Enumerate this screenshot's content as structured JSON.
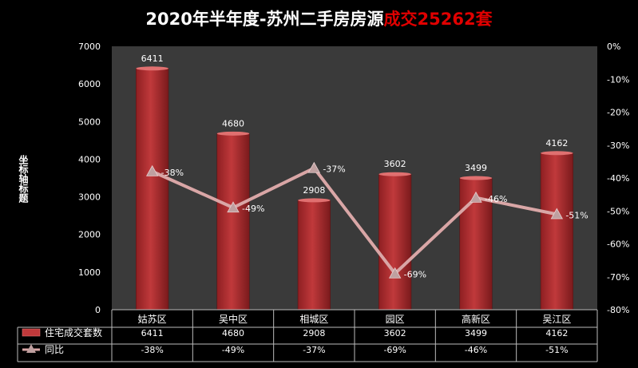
{
  "title": {
    "main": "2020年半年度-苏州二手房房源",
    "highlight": "成交25262套"
  },
  "chart_data": {
    "type": "bar",
    "categories": [
      "姑苏区",
      "吴中区",
      "相城区",
      "园区",
      "高新区",
      "吴江区"
    ],
    "series": [
      {
        "name": "住宅成交套数",
        "type": "bar",
        "axis": "left",
        "values": [
          6411,
          4680,
          2908,
          3602,
          3499,
          4162
        ]
      },
      {
        "name": "同比",
        "type": "line",
        "axis": "right",
        "values": [
          -38,
          -49,
          -37,
          -69,
          -46,
          -51
        ]
      }
    ],
    "ylabel": "坐标轴标题",
    "ylim": [
      0,
      7000
    ],
    "y2lim": [
      -80,
      0
    ],
    "yticks": [
      "0",
      "1000",
      "2000",
      "3000",
      "4000",
      "5000",
      "6000",
      "7000"
    ],
    "y2ticks": [
      "-80%",
      "-70%",
      "-60%",
      "-50%",
      "-40%",
      "-30%",
      "-20%",
      "-10%",
      "0%"
    ],
    "grid": false,
    "legend": "data-table",
    "colors": {
      "bar": "#c0393b",
      "line": "#d9a6a6",
      "plot_bg": "#3a3a3a",
      "title_highlight": "#e00000"
    }
  }
}
